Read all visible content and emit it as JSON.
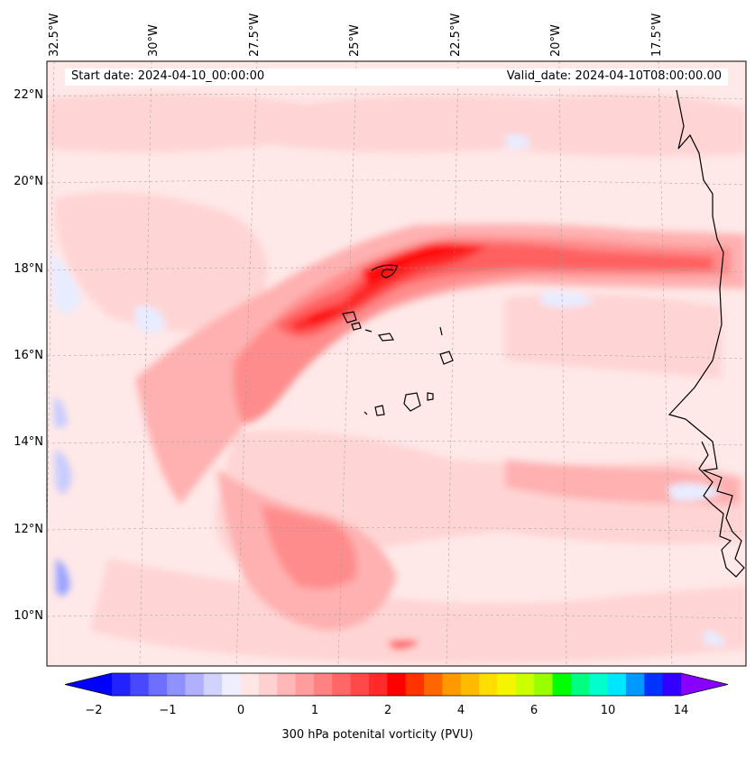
{
  "map": {
    "start_date": "Start date: 2024-04-10_00:00:00",
    "valid_date": "Valid_date: 2024-04-10T08:00:00.00",
    "lon_labels": [
      "32.5°W",
      "30°W",
      "27.5°W",
      "25°W",
      "22.5°W",
      "20°W",
      "17.5°W"
    ],
    "lat_labels": [
      "22°N",
      "20°N",
      "18°N",
      "16°N",
      "14°N",
      "12°N",
      "10°N"
    ],
    "colors": {
      "background": "#ffe8e8",
      "light_pink": "#ffd4d4",
      "pink": "#ffb0b0",
      "salmon": "#ff8c8c",
      "red_light": "#ff6060",
      "red": "#ff2a2a",
      "red_strong": "#ff0d0d",
      "blue_light": "#e8ecff",
      "blue": "#c8ccff",
      "blue_mid": "#9aa4ff",
      "coast": "#000000"
    }
  },
  "colorbar": {
    "title": "300 hPa potenital vorticity (PVU)",
    "ticks": [
      "−2",
      "−1",
      "0",
      "1",
      "2",
      "4",
      "6",
      "10",
      "14"
    ],
    "colors": [
      "#0000ff",
      "#2222ff",
      "#4848ff",
      "#6e6eff",
      "#9090ff",
      "#b0b0ff",
      "#d2d2ff",
      "#eeeeff",
      "#ffe6e6",
      "#ffd0d0",
      "#ffb6b6",
      "#ff9c9c",
      "#ff8282",
      "#ff6666",
      "#ff4848",
      "#ff2a2a",
      "#ff0000",
      "#ff3300",
      "#ff6600",
      "#ff9900",
      "#ffbb00",
      "#ffdd00",
      "#f5f500",
      "#ccff00",
      "#99ff00",
      "#00ff00",
      "#00ff80",
      "#00ffcc",
      "#00e6ff",
      "#0099ff",
      "#0033ff",
      "#3300ff",
      "#8800ff"
    ]
  }
}
